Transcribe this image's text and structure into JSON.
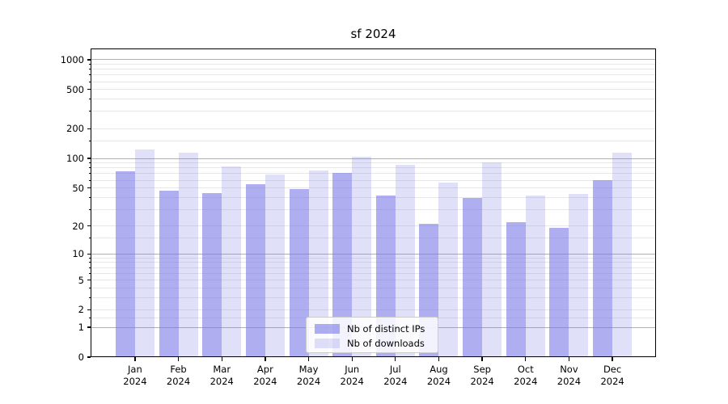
{
  "title": "sf 2024",
  "chart_data": {
    "type": "bar",
    "title": "sf 2024",
    "categories": [
      "Jan 2024",
      "Feb 2024",
      "Mar 2024",
      "Apr 2024",
      "May 2024",
      "Jun 2024",
      "Jul 2024",
      "Aug 2024",
      "Sep 2024",
      "Oct 2024",
      "Nov 2024",
      "Dec 2024"
    ],
    "series": [
      {
        "name": "Nb of distinct IPs",
        "color": "#7878e6",
        "alpha": 0.6,
        "values": [
          74,
          47,
          44,
          55,
          49,
          71,
          42,
          21,
          39,
          22,
          19,
          60
        ]
      },
      {
        "name": "Nb of downloads",
        "color": "#7878e6",
        "alpha": 0.23,
        "values": [
          123,
          114,
          83,
          69,
          76,
          104,
          86,
          57,
          91,
          42,
          43,
          114
        ]
      }
    ],
    "xlabel": "",
    "ylabel": "",
    "yscale": "log1p",
    "ylim": [
      0,
      1300
    ],
    "yticks": [
      {
        "value": 1000,
        "label": "1000"
      },
      {
        "value": 500,
        "label": "500"
      },
      {
        "value": 200,
        "label": "200"
      },
      {
        "value": 100,
        "label": "100"
      },
      {
        "value": 50,
        "label": "50"
      },
      {
        "value": 20,
        "label": "20"
      },
      {
        "value": 10,
        "label": "10"
      },
      {
        "value": 5,
        "label": "5"
      },
      {
        "value": 2,
        "label": "2"
      },
      {
        "value": 1,
        "label": "1"
      },
      {
        "value": 0,
        "label": "0"
      }
    ],
    "major_gridline_values": [
      1,
      10,
      100,
      1000
    ],
    "minor_gridline_values": [
      1.5,
      3,
      4,
      6,
      7,
      8,
      9,
      15,
      30,
      40,
      60,
      70,
      80,
      90,
      150,
      300,
      400,
      600,
      700,
      800,
      900
    ],
    "grid": true,
    "legend_position": "lower center",
    "colors": {
      "major_grid": "#b0b0b0",
      "minor_grid": "#e7e7e7",
      "spine": "#000000",
      "background": "#ffffff"
    }
  }
}
